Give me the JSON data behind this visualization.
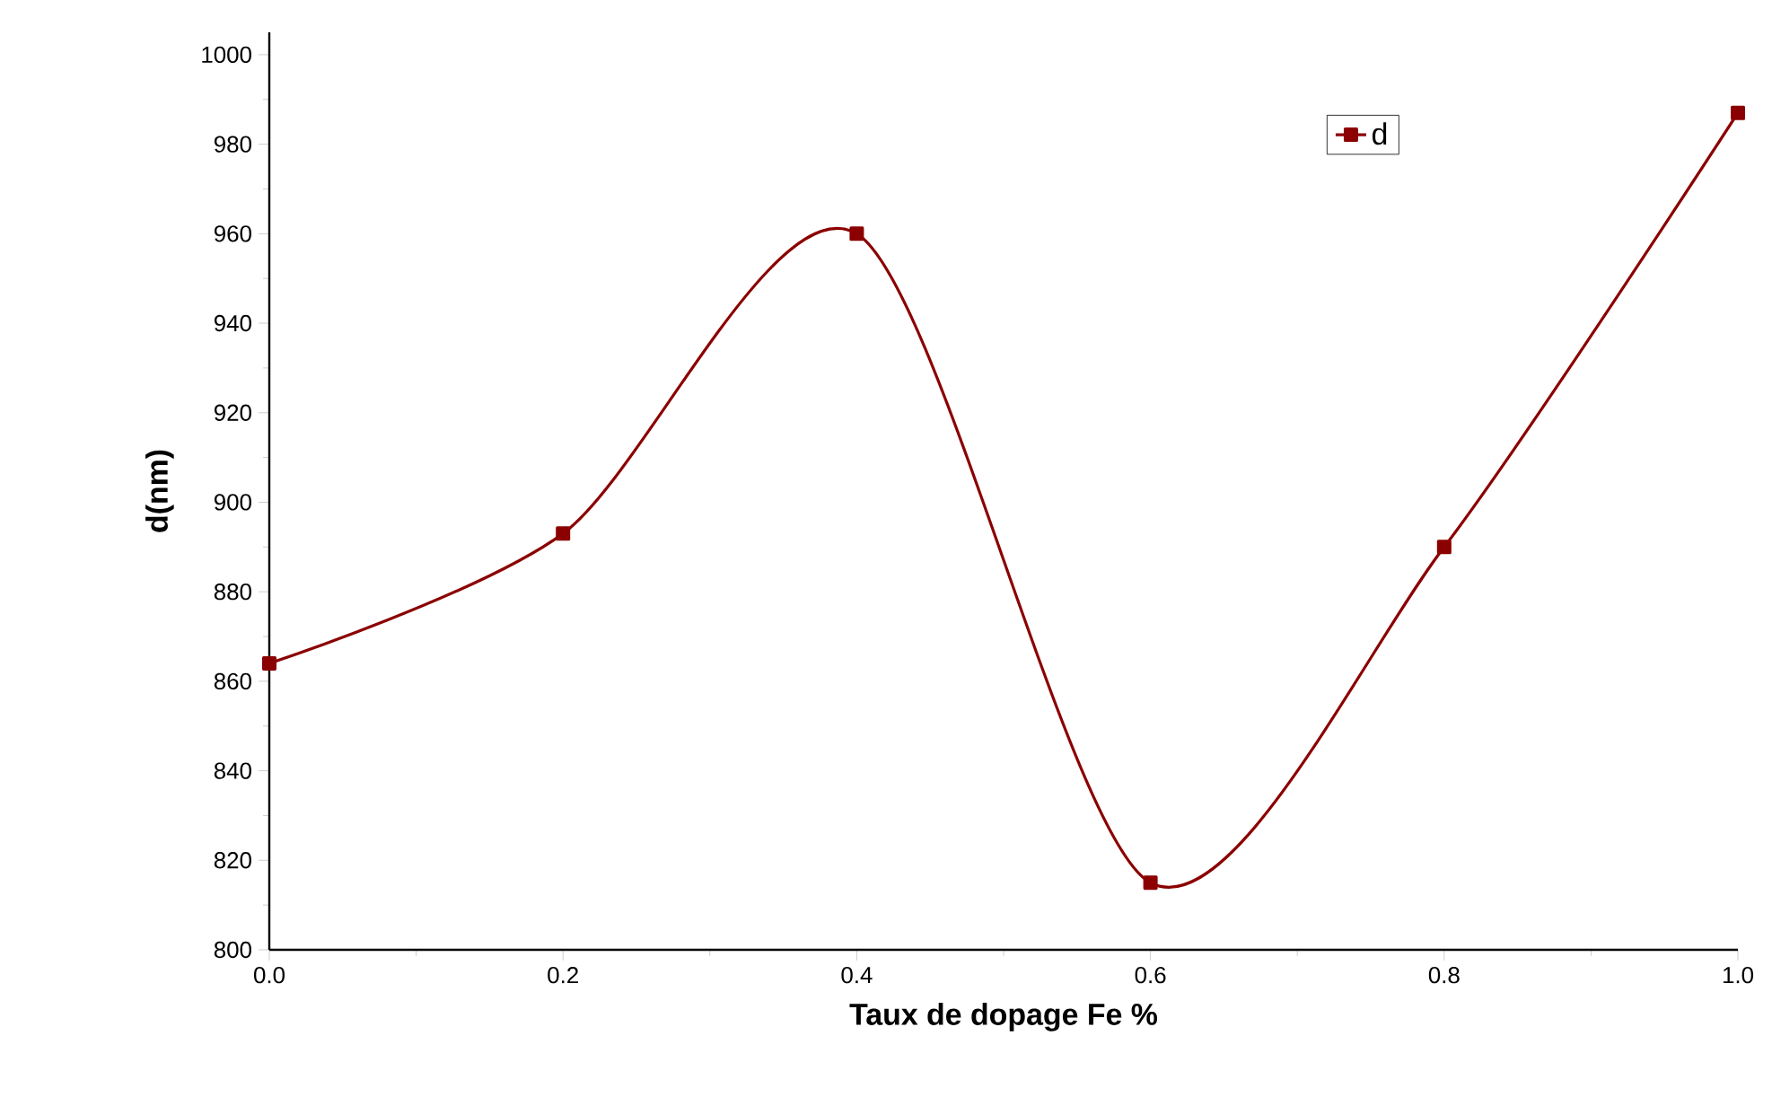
{
  "chart_data": {
    "type": "line",
    "xlabel": "Taux de dopage Fe %",
    "ylabel": "d(nm)",
    "x": [
      0.0,
      0.2,
      0.4,
      0.6,
      0.8,
      1.0
    ],
    "series": [
      {
        "name": "d",
        "color": "#8b0000",
        "values": [
          864,
          893,
          960,
          815,
          890,
          987
        ]
      }
    ],
    "xlim": [
      0,
      1
    ],
    "ylim": [
      800,
      1005
    ],
    "xticks": [
      {
        "value": 0,
        "label": "0.0"
      },
      {
        "value": 0.2,
        "label": "0.2"
      },
      {
        "value": 0.4,
        "label": "0.4"
      },
      {
        "value": 0.6,
        "label": "0.6"
      },
      {
        "value": 0.8,
        "label": "0.8"
      },
      {
        "value": 1.0,
        "label": "1.0"
      }
    ],
    "yticks": [
      800,
      820,
      840,
      860,
      880,
      900,
      920,
      940,
      960,
      980,
      1000
    ],
    "marker": "square",
    "line_style": "solid",
    "legend": "top right",
    "grid": false
  }
}
